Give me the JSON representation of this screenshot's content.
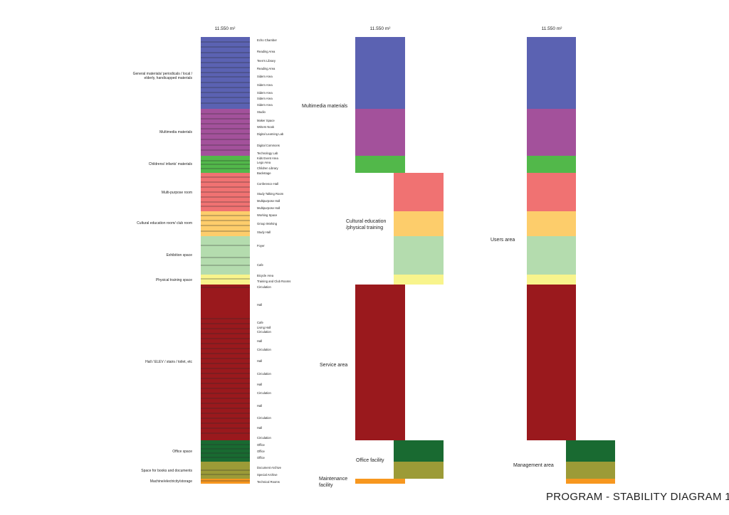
{
  "title": "PROGRAM - STABILITY DIAGRAM 1",
  "total_area": "11.550 m²",
  "colors": {
    "blue": "#5b62b2",
    "purple": "#a3519b",
    "green": "#52b84a",
    "salmon": "#f07272",
    "orange_light": "#fdcd6b",
    "sage": "#b4dcae",
    "yellow": "#f8f48c",
    "red": "#9a191d",
    "dark_green": "#196a31",
    "olive": "#9c9b37",
    "orange": "#f7971f"
  },
  "left_categories": [
    {
      "label": "General materials/ periodicals / local / elderly, handicapped materials",
      "color": "blue"
    },
    {
      "label": "Multimedia materials",
      "color": "purple"
    },
    {
      "label": "Childrens/ infants' materials",
      "color": "green"
    },
    {
      "label": "Multi-purpose room",
      "color": "salmon"
    },
    {
      "label": "Cultural education room/ club room",
      "color": "orange_light"
    },
    {
      "label": "Exhibition space",
      "color": "sage"
    },
    {
      "label": "Physical training space",
      "color": "yellow"
    },
    {
      "label": "Hall / ELEV / stairs / toilet, etc",
      "color": "red"
    },
    {
      "label": "Office space",
      "color": "dark_green"
    },
    {
      "label": "Space for books and documents",
      "color": "olive"
    },
    {
      "label": "Machine/electricity/storage",
      "color": "orange"
    }
  ],
  "areas": [
    "Echo Chamber",
    "Reading Area",
    "Teen's Library",
    "Reading Area",
    "Sidem Area",
    "Sidem Area",
    "Sidem Area",
    "Sidem Area",
    "Sidem Area",
    "Studio",
    "Maker Space",
    "Writers Nook",
    "Digital Learning Lab",
    "Digital Commons",
    "Technology Lab",
    "Kids Event Area",
    "Lego Area",
    "Children Library",
    "Backstage",
    "Conference Hall",
    "Study Talking Room",
    "Multipurpose Hall",
    "Multipurpose Hall",
    "Working Space",
    "Group Working",
    "Study Hall",
    "Foyer",
    "Cafe",
    "Bicycle Area",
    "Training and Club Rooms",
    "Circulation",
    "Hall",
    "Cafe",
    "Living Hall",
    "Circulation",
    "Hall",
    "Circulation",
    "Hall",
    "Circulation",
    "Hall",
    "Circulation",
    "Hall",
    "Circulation",
    "Hall",
    "Circulation",
    "Office",
    "Office",
    "Office",
    "Document Archive",
    "Special Archive",
    "Technical Rooms"
  ],
  "middle_groups": [
    {
      "label": "Multimedia materials"
    },
    {
      "label": "Cultural education /physical training"
    },
    {
      "label": "Service area"
    },
    {
      "label": "Office facility"
    },
    {
      "label": "Maintenance facility"
    }
  ],
  "right_groups": [
    {
      "label": "Users area"
    },
    {
      "label": "Management area"
    }
  ]
}
